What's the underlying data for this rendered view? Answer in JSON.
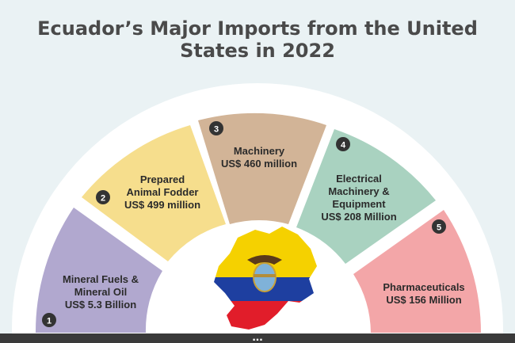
{
  "title": "Ecuador’s Major Imports from the United States in 2022",
  "segments": [
    {
      "number": "1",
      "line1": "Mineral Fuels &",
      "line2": "Mineral Oil",
      "line3": "US$ 5.3 Billion",
      "color": "#b1a8cf"
    },
    {
      "number": "2",
      "line1": "Prepared",
      "line2": "Animal Fodder",
      "line3": "US$ 499 million",
      "color": "#f6de8d"
    },
    {
      "number": "3",
      "line1": "Machinery",
      "line2": "US$ 460 million",
      "line3": "",
      "color": "#d2b497"
    },
    {
      "number": "4",
      "line1": "Electrical",
      "line2": "Machinery &",
      "line3": "Equipment",
      "line4": "US$ 208 Million",
      "color": "#a9d2c0"
    },
    {
      "number": "5",
      "line1": "Pharmaceuticals",
      "line2": "US$ 156 Million",
      "line3": "",
      "color": "#f3a6a8"
    }
  ],
  "footer_text": "...",
  "colors": {
    "background": "#eaf2f4",
    "title": "#4a4a4a",
    "badge": "#333333",
    "footer": "#3a3a3a",
    "flag_yellow": "#f5d100",
    "flag_blue": "#1e3fa0",
    "flag_red": "#e11d2a"
  },
  "center_image": "ecuador-flag-map"
}
